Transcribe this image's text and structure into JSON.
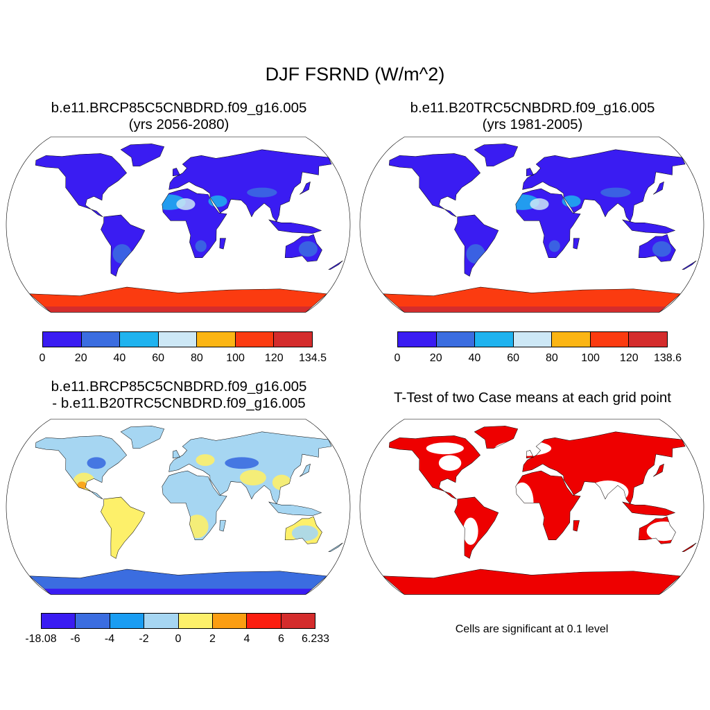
{
  "title": "DJF FSRND (W/m^2)",
  "panels": [
    {
      "id": "case1",
      "title_line1": "b.e11.BRCP85C5CNBDRD.f09_g16.005",
      "title_line2": "(yrs 2056-2080)",
      "colorbar": {
        "colors": [
          "#3a1cf2",
          "#3b6de0",
          "#1fb3ef",
          "#cde8f6",
          "#fbb514",
          "#fb3b10",
          "#d42c2c"
        ],
        "labels": [
          "0",
          "20",
          "40",
          "60",
          "80",
          "100",
          "120",
          "134.5"
        ]
      }
    },
    {
      "id": "case2",
      "title_line1": "b.e11.B20TRC5CNBDRD.f09_g16.005",
      "title_line2": "(yrs 1981-2005)",
      "colorbar": {
        "colors": [
          "#3a1cf2",
          "#3b6de0",
          "#1fb3ef",
          "#cde8f6",
          "#fbb514",
          "#fb3b10",
          "#d42c2c"
        ],
        "labels": [
          "0",
          "20",
          "40",
          "60",
          "80",
          "100",
          "120",
          "138.6"
        ]
      }
    },
    {
      "id": "diff",
      "title_line1": "b.e11.BRCP85C5CNBDRD.f09_g16.005",
      "title_line2": "- b.e11.B20TRC5CNBDRD.f09_g16.005",
      "colorbar": {
        "colors": [
          "#3a1cf2",
          "#3b6de0",
          "#1a9df2",
          "#a6d6f2",
          "#fdf06a",
          "#fb9e12",
          "#fb1e10",
          "#d42c2c"
        ],
        "labels": [
          "-18.08",
          "-6",
          "-4",
          "-2",
          "0",
          "2",
          "4",
          "6",
          "6.233"
        ]
      }
    },
    {
      "id": "ttest",
      "title_line1": "T-Test of two Case means at each grid point",
      "note": "Cells are significant at 0.1 level",
      "fill_color": "#ee0000"
    }
  ]
}
